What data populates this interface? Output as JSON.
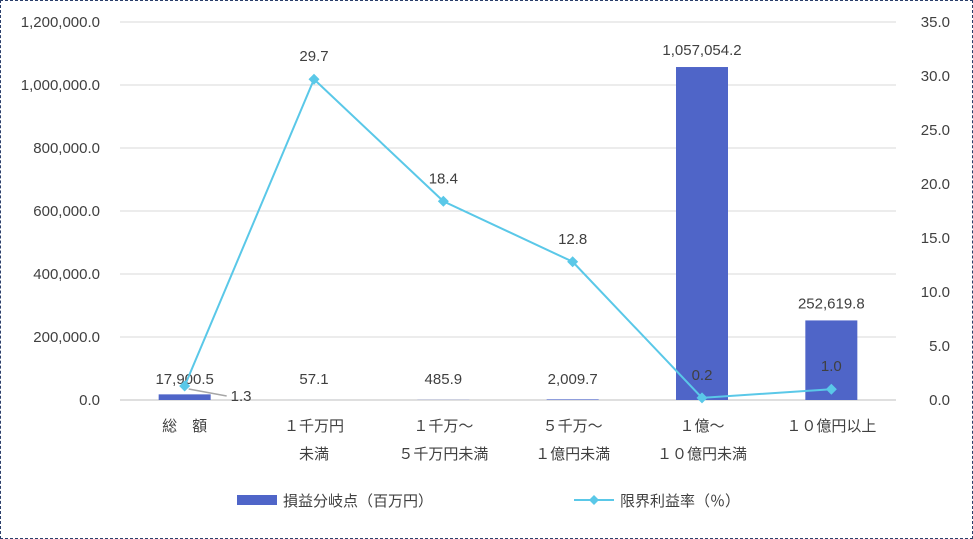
{
  "chart_data": {
    "type": "bar",
    "categories": [
      [
        "総　額"
      ],
      [
        "１千万円",
        "未満"
      ],
      [
        "１千万～",
        "５千万円未満"
      ],
      [
        "５千万～",
        "１億円未満"
      ],
      [
        "１億～",
        "１０億円未満"
      ],
      [
        "１０億円以上"
      ]
    ],
    "series": [
      {
        "name": "損益分岐点（百万円）",
        "type": "bar",
        "axis": "left",
        "color": "#4f65c8",
        "values": [
          17900.5,
          57.1,
          485.9,
          2009.7,
          1057054.2,
          252619.8
        ],
        "labels": [
          "17,900.5",
          "57.1",
          "485.9",
          "2,009.7",
          "1,057,054.2",
          "252,619.8"
        ]
      },
      {
        "name": "限界利益率（％）",
        "type": "line",
        "axis": "right",
        "color": "#5ac8e8",
        "marker": "diamond",
        "values": [
          1.3,
          29.7,
          18.4,
          12.8,
          0.2,
          1.0
        ],
        "labels": [
          "1.3",
          "29.7",
          "18.4",
          "12.8",
          "0.2",
          "1.0"
        ]
      }
    ],
    "y_left": {
      "range": [
        0,
        1200000
      ],
      "ticks": [
        "0.0",
        "200,000.0",
        "400,000.0",
        "600,000.0",
        "800,000.0",
        "1,000,000.0",
        "1,200,000.0"
      ]
    },
    "y_right": {
      "range": [
        0,
        35
      ],
      "ticks": [
        "0.0",
        "5.0",
        "10.0",
        "15.0",
        "20.0",
        "25.0",
        "30.0",
        "35.0"
      ]
    },
    "grid": true,
    "legend_position": "bottom"
  }
}
